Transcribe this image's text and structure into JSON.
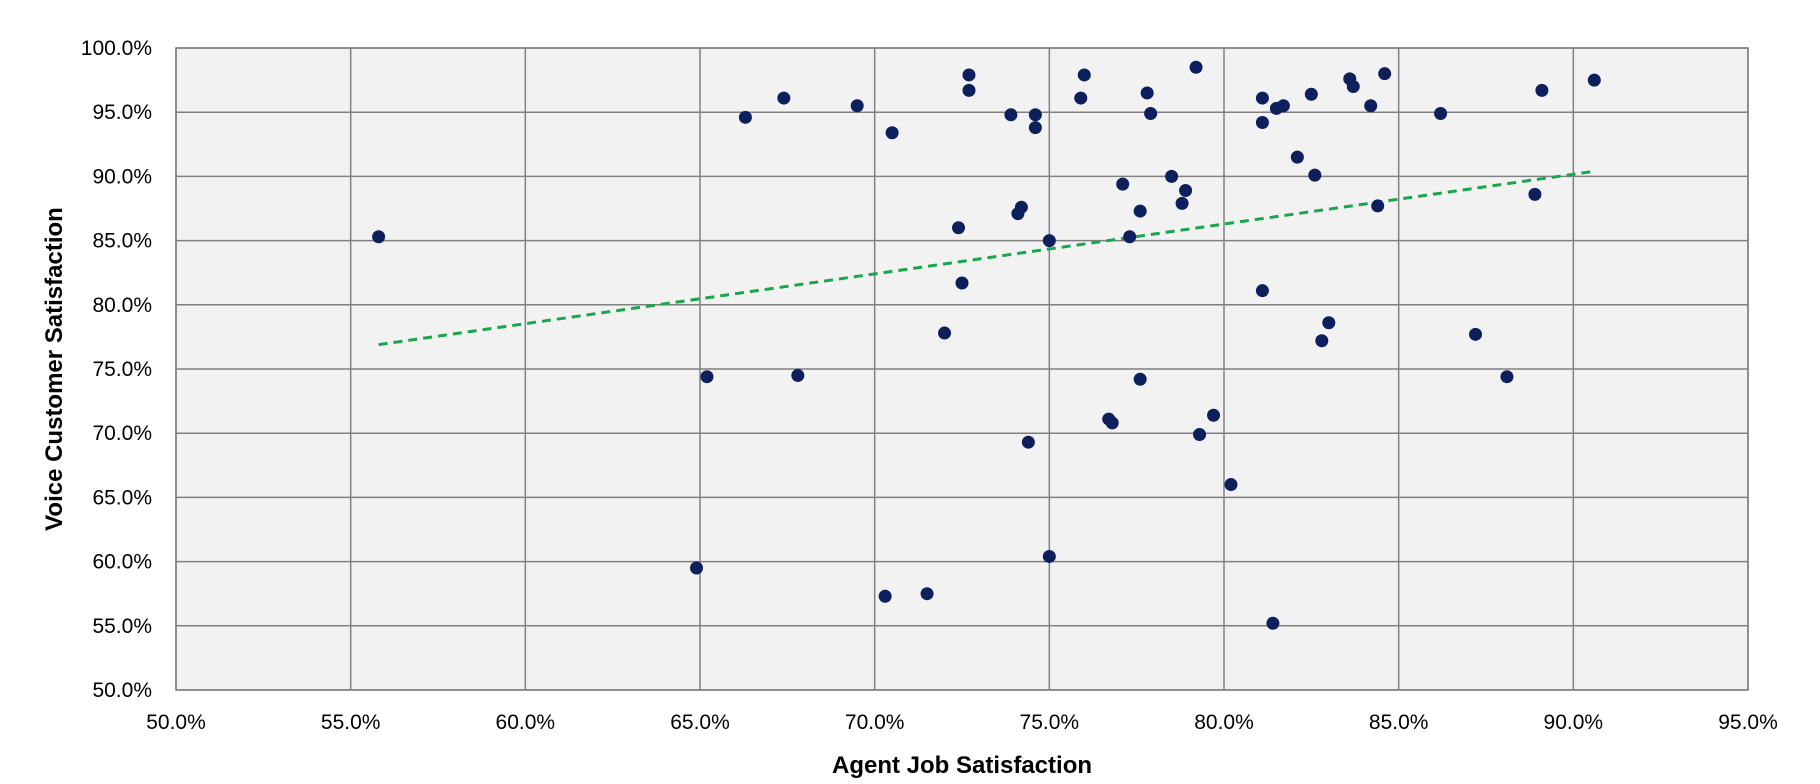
{
  "chart_data": {
    "type": "scatter",
    "title": "",
    "xlabel": "Agent Job Satisfaction",
    "ylabel": "Voice Customer Satisfaction",
    "xlim": [
      0.5,
      0.95
    ],
    "ylim": [
      0.5,
      1.0
    ],
    "x_ticks": [
      0.5,
      0.55,
      0.6,
      0.65,
      0.7,
      0.75,
      0.8,
      0.85,
      0.9,
      0.95
    ],
    "y_ticks": [
      0.5,
      0.55,
      0.6,
      0.65,
      0.7,
      0.75,
      0.8,
      0.85,
      0.9,
      0.95,
      1.0
    ],
    "x_tick_labels": [
      "50.0%",
      "55.0%",
      "60.0%",
      "65.0%",
      "70.0%",
      "75.0%",
      "80.0%",
      "85.0%",
      "90.0%",
      "95.0%"
    ],
    "y_tick_labels": [
      "50.0%",
      "55.0%",
      "60.0%",
      "65.0%",
      "70.0%",
      "75.0%",
      "80.0%",
      "85.0%",
      "90.0%",
      "95.0%",
      "100.0%"
    ],
    "grid": true,
    "legend": "none",
    "series": [
      {
        "points": [
          [
            0.558,
            0.853
          ],
          [
            0.649,
            0.595
          ],
          [
            0.652,
            0.744
          ],
          [
            0.663,
            0.946
          ],
          [
            0.674,
            0.961
          ],
          [
            0.678,
            0.745
          ],
          [
            0.695,
            0.955
          ],
          [
            0.703,
            0.573
          ],
          [
            0.705,
            0.934
          ],
          [
            0.715,
            0.575
          ],
          [
            0.72,
            0.778
          ],
          [
            0.724,
            0.86
          ],
          [
            0.725,
            0.817
          ],
          [
            0.727,
            0.979
          ],
          [
            0.727,
            0.967
          ],
          [
            0.739,
            0.948
          ],
          [
            0.741,
            0.871
          ],
          [
            0.742,
            0.876
          ],
          [
            0.744,
            0.693
          ],
          [
            0.746,
            0.948
          ],
          [
            0.746,
            0.938
          ],
          [
            0.75,
            0.85
          ],
          [
            0.75,
            0.604
          ],
          [
            0.759,
            0.961
          ],
          [
            0.76,
            0.979
          ],
          [
            0.767,
            0.711
          ],
          [
            0.768,
            0.708
          ],
          [
            0.771,
            0.894
          ],
          [
            0.773,
            0.853
          ],
          [
            0.776,
            0.873
          ],
          [
            0.776,
            0.742
          ],
          [
            0.778,
            0.965
          ],
          [
            0.779,
            0.949
          ],
          [
            0.785,
            0.9
          ],
          [
            0.788,
            0.879
          ],
          [
            0.789,
            0.889
          ],
          [
            0.792,
            0.985
          ],
          [
            0.793,
            0.699
          ],
          [
            0.797,
            0.714
          ],
          [
            0.802,
            0.66
          ],
          [
            0.811,
            0.961
          ],
          [
            0.811,
            0.942
          ],
          [
            0.811,
            0.811
          ],
          [
            0.814,
            0.552
          ],
          [
            0.815,
            0.953
          ],
          [
            0.817,
            0.955
          ],
          [
            0.821,
            0.915
          ],
          [
            0.825,
            0.964
          ],
          [
            0.826,
            0.901
          ],
          [
            0.828,
            0.772
          ],
          [
            0.83,
            0.786
          ],
          [
            0.836,
            0.976
          ],
          [
            0.837,
            0.97
          ],
          [
            0.842,
            0.955
          ],
          [
            0.844,
            0.877
          ],
          [
            0.846,
            0.98
          ],
          [
            0.862,
            0.949
          ],
          [
            0.872,
            0.777
          ],
          [
            0.881,
            0.744
          ],
          [
            0.889,
            0.886
          ],
          [
            0.891,
            0.967
          ],
          [
            0.906,
            0.975
          ]
        ]
      }
    ],
    "trendline": {
      "style": "dashed",
      "x": [
        0.558,
        0.906
      ],
      "y": [
        0.769,
        0.904
      ]
    },
    "colors": {
      "points": "#0d1f5c",
      "trendline": "#1aa64a",
      "plot_background": "#f2f2f2",
      "gridline": "#808080"
    }
  }
}
